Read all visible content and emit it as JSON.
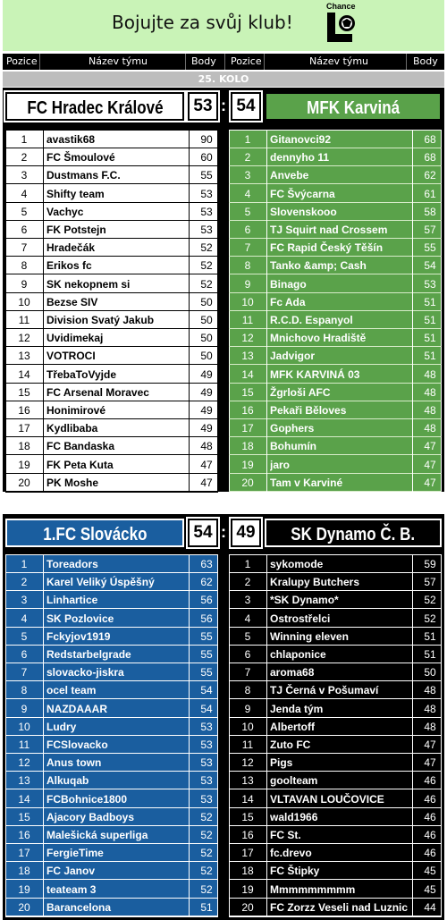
{
  "banner": {
    "text": "Bojujte za svůj klub!",
    "logo_text": "Chance",
    "logo_icon": "chance-logo-icon"
  },
  "columns": {
    "pos": "Pozice",
    "team": "Název týmu",
    "pts": "Body"
  },
  "round": "25. KOLO",
  "colors": {
    "green_light": "#c9f3b7",
    "green": "#5aa24a",
    "blue": "#1a5e9f",
    "black": "#000000"
  },
  "matches": [
    {
      "home": {
        "name": "FC Hradec Králové",
        "score": "53"
      },
      "away": {
        "name": "MFK Karviná",
        "score": "54"
      },
      "home_rows": [
        {
          "pos": "1",
          "name": "avastik68",
          "pts": "90"
        },
        {
          "pos": "2",
          "name": "FC Šmoulové",
          "pts": "60"
        },
        {
          "pos": "3",
          "name": "Dustmans F.C.",
          "pts": "55"
        },
        {
          "pos": "4",
          "name": "Shifty team",
          "pts": "53"
        },
        {
          "pos": "5",
          "name": "Vachyc",
          "pts": "53"
        },
        {
          "pos": "6",
          "name": "FK Potstejn",
          "pts": "53"
        },
        {
          "pos": "7",
          "name": "Hradečák",
          "pts": "52"
        },
        {
          "pos": "8",
          "name": "Erikos fc",
          "pts": "52"
        },
        {
          "pos": "9",
          "name": "SK nekopnem si",
          "pts": "52"
        },
        {
          "pos": "10",
          "name": "Bezse SIV",
          "pts": "50"
        },
        {
          "pos": "11",
          "name": "Division Svatý Jakub",
          "pts": "50"
        },
        {
          "pos": "12",
          "name": "Uvidimekaj",
          "pts": "50"
        },
        {
          "pos": "13",
          "name": "VOTROCI",
          "pts": "50"
        },
        {
          "pos": "14",
          "name": "TřebaToVyjde",
          "pts": "49"
        },
        {
          "pos": "15",
          "name": "FC Arsenal Moravec",
          "pts": "49"
        },
        {
          "pos": "16",
          "name": "Honimirové",
          "pts": "49"
        },
        {
          "pos": "17",
          "name": "Kydlibaba",
          "pts": "49"
        },
        {
          "pos": "18",
          "name": "FC Bandaska",
          "pts": "48"
        },
        {
          "pos": "19",
          "name": "FK Peta Kuta",
          "pts": "47"
        },
        {
          "pos": "20",
          "name": "PK Moshe",
          "pts": "47"
        }
      ],
      "away_rows": [
        {
          "pos": "1",
          "name": "Gitanovci92",
          "pts": "68"
        },
        {
          "pos": "2",
          "name": "dennyho 11",
          "pts": "68"
        },
        {
          "pos": "3",
          "name": "Anvebe",
          "pts": "62"
        },
        {
          "pos": "4",
          "name": "FC Švýcarna",
          "pts": "61"
        },
        {
          "pos": "5",
          "name": "Slovenskooo",
          "pts": "58"
        },
        {
          "pos": "6",
          "name": "TJ Squirt nad Crossem",
          "pts": "57"
        },
        {
          "pos": "7",
          "name": "FC Rapid Český Těšín",
          "pts": "55"
        },
        {
          "pos": "8",
          "name": "Tanko &amp; Cash",
          "pts": "54"
        },
        {
          "pos": "9",
          "name": "Binago",
          "pts": "53"
        },
        {
          "pos": "10",
          "name": "Fc Ada",
          "pts": "51"
        },
        {
          "pos": "11",
          "name": "R.C.D. Espanyol",
          "pts": "51"
        },
        {
          "pos": "12",
          "name": "Mnichovo Hradiště",
          "pts": "51"
        },
        {
          "pos": "13",
          "name": "Jadvigor",
          "pts": "51"
        },
        {
          "pos": "14",
          "name": "MFK KARVINÁ 03",
          "pts": "48"
        },
        {
          "pos": "15",
          "name": "Žgrloši AFC",
          "pts": "48"
        },
        {
          "pos": "16",
          "name": "Pekaři Běloves",
          "pts": "48"
        },
        {
          "pos": "17",
          "name": "Gophers",
          "pts": "48"
        },
        {
          "pos": "18",
          "name": "Bohumín",
          "pts": "47"
        },
        {
          "pos": "19",
          "name": "jaro",
          "pts": "47"
        },
        {
          "pos": "20",
          "name": "Tam v Karviné",
          "pts": "47"
        }
      ]
    },
    {
      "home": {
        "name": "1.FC Slovácko",
        "score": "54"
      },
      "away": {
        "name": "SK Dynamo Č. B.",
        "score": "49"
      },
      "home_rows": [
        {
          "pos": "1",
          "name": "Toreadors",
          "pts": "63"
        },
        {
          "pos": "2",
          "name": "Karel Veliký Úspěšný",
          "pts": "62"
        },
        {
          "pos": "3",
          "name": "Linhartice",
          "pts": "56"
        },
        {
          "pos": "4",
          "name": "SK Pozlovice",
          "pts": "56"
        },
        {
          "pos": "5",
          "name": "Fckyjov1919",
          "pts": "55"
        },
        {
          "pos": "6",
          "name": "Redstarbelgrade",
          "pts": "55"
        },
        {
          "pos": "7",
          "name": "slovacko-jiskra",
          "pts": "55"
        },
        {
          "pos": "8",
          "name": "ocel team",
          "pts": "54"
        },
        {
          "pos": "9",
          "name": "NAZDAAAR",
          "pts": "54"
        },
        {
          "pos": "10",
          "name": "Ludry",
          "pts": "53"
        },
        {
          "pos": "11",
          "name": "FCSlovacko",
          "pts": "53"
        },
        {
          "pos": "12",
          "name": "Anus town",
          "pts": "53"
        },
        {
          "pos": "13",
          "name": "Alkuqab",
          "pts": "53"
        },
        {
          "pos": "14",
          "name": "FCBohnice1800",
          "pts": "53"
        },
        {
          "pos": "15",
          "name": "Ajacory Badboys",
          "pts": "52"
        },
        {
          "pos": "16",
          "name": "Malešická superliga",
          "pts": "52"
        },
        {
          "pos": "17",
          "name": "FergieTime",
          "pts": "52"
        },
        {
          "pos": "18",
          "name": "FC Janov",
          "pts": "52"
        },
        {
          "pos": "19",
          "name": "teateam 3",
          "pts": "52"
        },
        {
          "pos": "20",
          "name": "Barancelona",
          "pts": "51"
        }
      ],
      "away_rows": [
        {
          "pos": "1",
          "name": "sykomode",
          "pts": "59"
        },
        {
          "pos": "2",
          "name": "Kralupy Butchers",
          "pts": "57"
        },
        {
          "pos": "3",
          "name": "*SK Dynamo*",
          "pts": "52"
        },
        {
          "pos": "4",
          "name": "Ostrostřelci",
          "pts": "52"
        },
        {
          "pos": "5",
          "name": "Winning eleven",
          "pts": "51"
        },
        {
          "pos": "6",
          "name": "chlaponice",
          "pts": "51"
        },
        {
          "pos": "7",
          "name": "aroma68",
          "pts": "50"
        },
        {
          "pos": "8",
          "name": "TJ Černá v Pošumaví",
          "pts": "48"
        },
        {
          "pos": "9",
          "name": "Jenda tým",
          "pts": "48"
        },
        {
          "pos": "10",
          "name": "Albertoff",
          "pts": "48"
        },
        {
          "pos": "11",
          "name": "Zuto FC",
          "pts": "47"
        },
        {
          "pos": "12",
          "name": "Pigs",
          "pts": "47"
        },
        {
          "pos": "13",
          "name": "goolteam",
          "pts": "46"
        },
        {
          "pos": "14",
          "name": "VLTAVAN LOUČOVICE",
          "pts": "46"
        },
        {
          "pos": "15",
          "name": "wald1966",
          "pts": "46"
        },
        {
          "pos": "16",
          "name": "FC St.",
          "pts": "46"
        },
        {
          "pos": "17",
          "name": "fc.drevo",
          "pts": "46"
        },
        {
          "pos": "18",
          "name": "FC Štipky",
          "pts": "45"
        },
        {
          "pos": "19",
          "name": "Mmmmmmmmm",
          "pts": "45"
        },
        {
          "pos": "20",
          "name": "FC Zorzz Veseli nad Luznic",
          "pts": "44"
        }
      ]
    }
  ]
}
